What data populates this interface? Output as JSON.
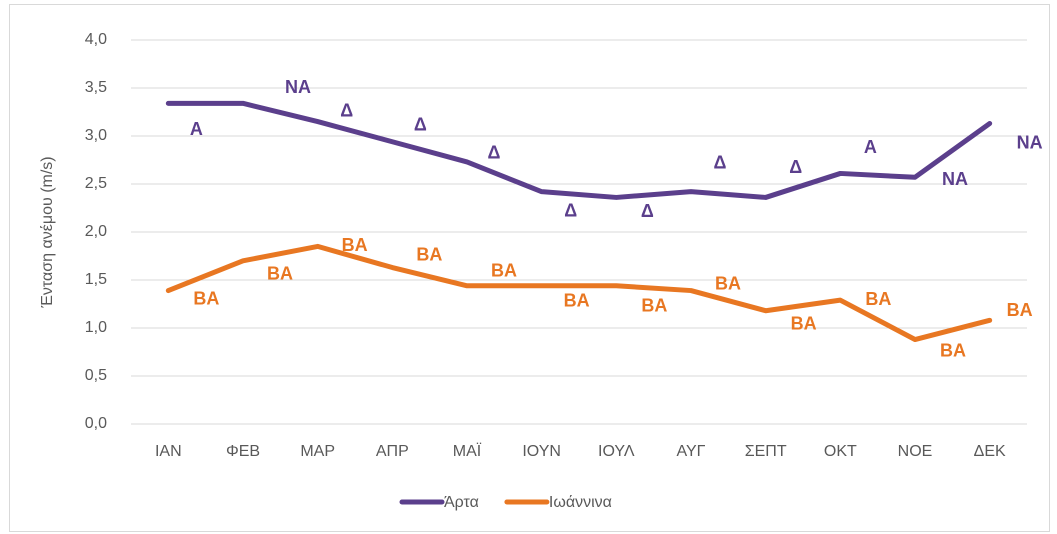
{
  "chart_data": {
    "type": "line",
    "y_label": "Ένταση ανέμου (m/s)",
    "categories": [
      "ΙΑΝ",
      "ΦΕΒ",
      "ΜΑΡ",
      "ΑΠΡ",
      "ΜΑΪ",
      "ΙΟΥΝ",
      "ΙΟΥΛ",
      "ΑΥΓ",
      "ΣΕΠΤ",
      "ΟΚΤ",
      "ΝΟΕ",
      "ΔΕΚ"
    ],
    "series": [
      {
        "name": "Άρτα",
        "color": "#5b3f8c",
        "values": [
          3.34,
          3.34,
          3.15,
          2.94,
          2.73,
          2.42,
          2.36,
          2.42,
          2.36,
          2.61,
          2.57,
          3.13
        ],
        "point_labels": [
          "Α",
          "ΝΑ",
          "Δ",
          "Δ",
          "Δ",
          "Δ",
          "Δ",
          "Δ",
          "Δ",
          "Α",
          "ΝΑ",
          "ΝΑ"
        ]
      },
      {
        "name": "Ιωάννινα",
        "color": "#e87722",
        "values": [
          1.39,
          1.7,
          1.85,
          1.63,
          1.44,
          1.44,
          1.44,
          1.39,
          1.18,
          1.29,
          0.88,
          1.08
        ],
        "point_labels": [
          "ΒΑ",
          "ΒΑ",
          "ΒΑ",
          "ΒΑ",
          "ΒΑ",
          "ΒΑ",
          "ΒΑ",
          "ΒΑ",
          "ΒΑ",
          "ΒΑ",
          "ΒΑ",
          "ΒΑ"
        ]
      }
    ],
    "ylim": [
      0,
      4
    ],
    "yticks": [
      {
        "value": 0,
        "label": "0,0"
      },
      {
        "value": 0.5,
        "label": "0,5"
      },
      {
        "value": 1,
        "label": "1,0"
      },
      {
        "value": 1.5,
        "label": "1,5"
      },
      {
        "value": 2,
        "label": "2,0"
      },
      {
        "value": 2.5,
        "label": "2,5"
      },
      {
        "value": 3,
        "label": "3,0"
      },
      {
        "value": 3.5,
        "label": "3,5"
      },
      {
        "value": 4,
        "label": "4,0"
      }
    ],
    "grid": true,
    "legend": "bottom"
  }
}
